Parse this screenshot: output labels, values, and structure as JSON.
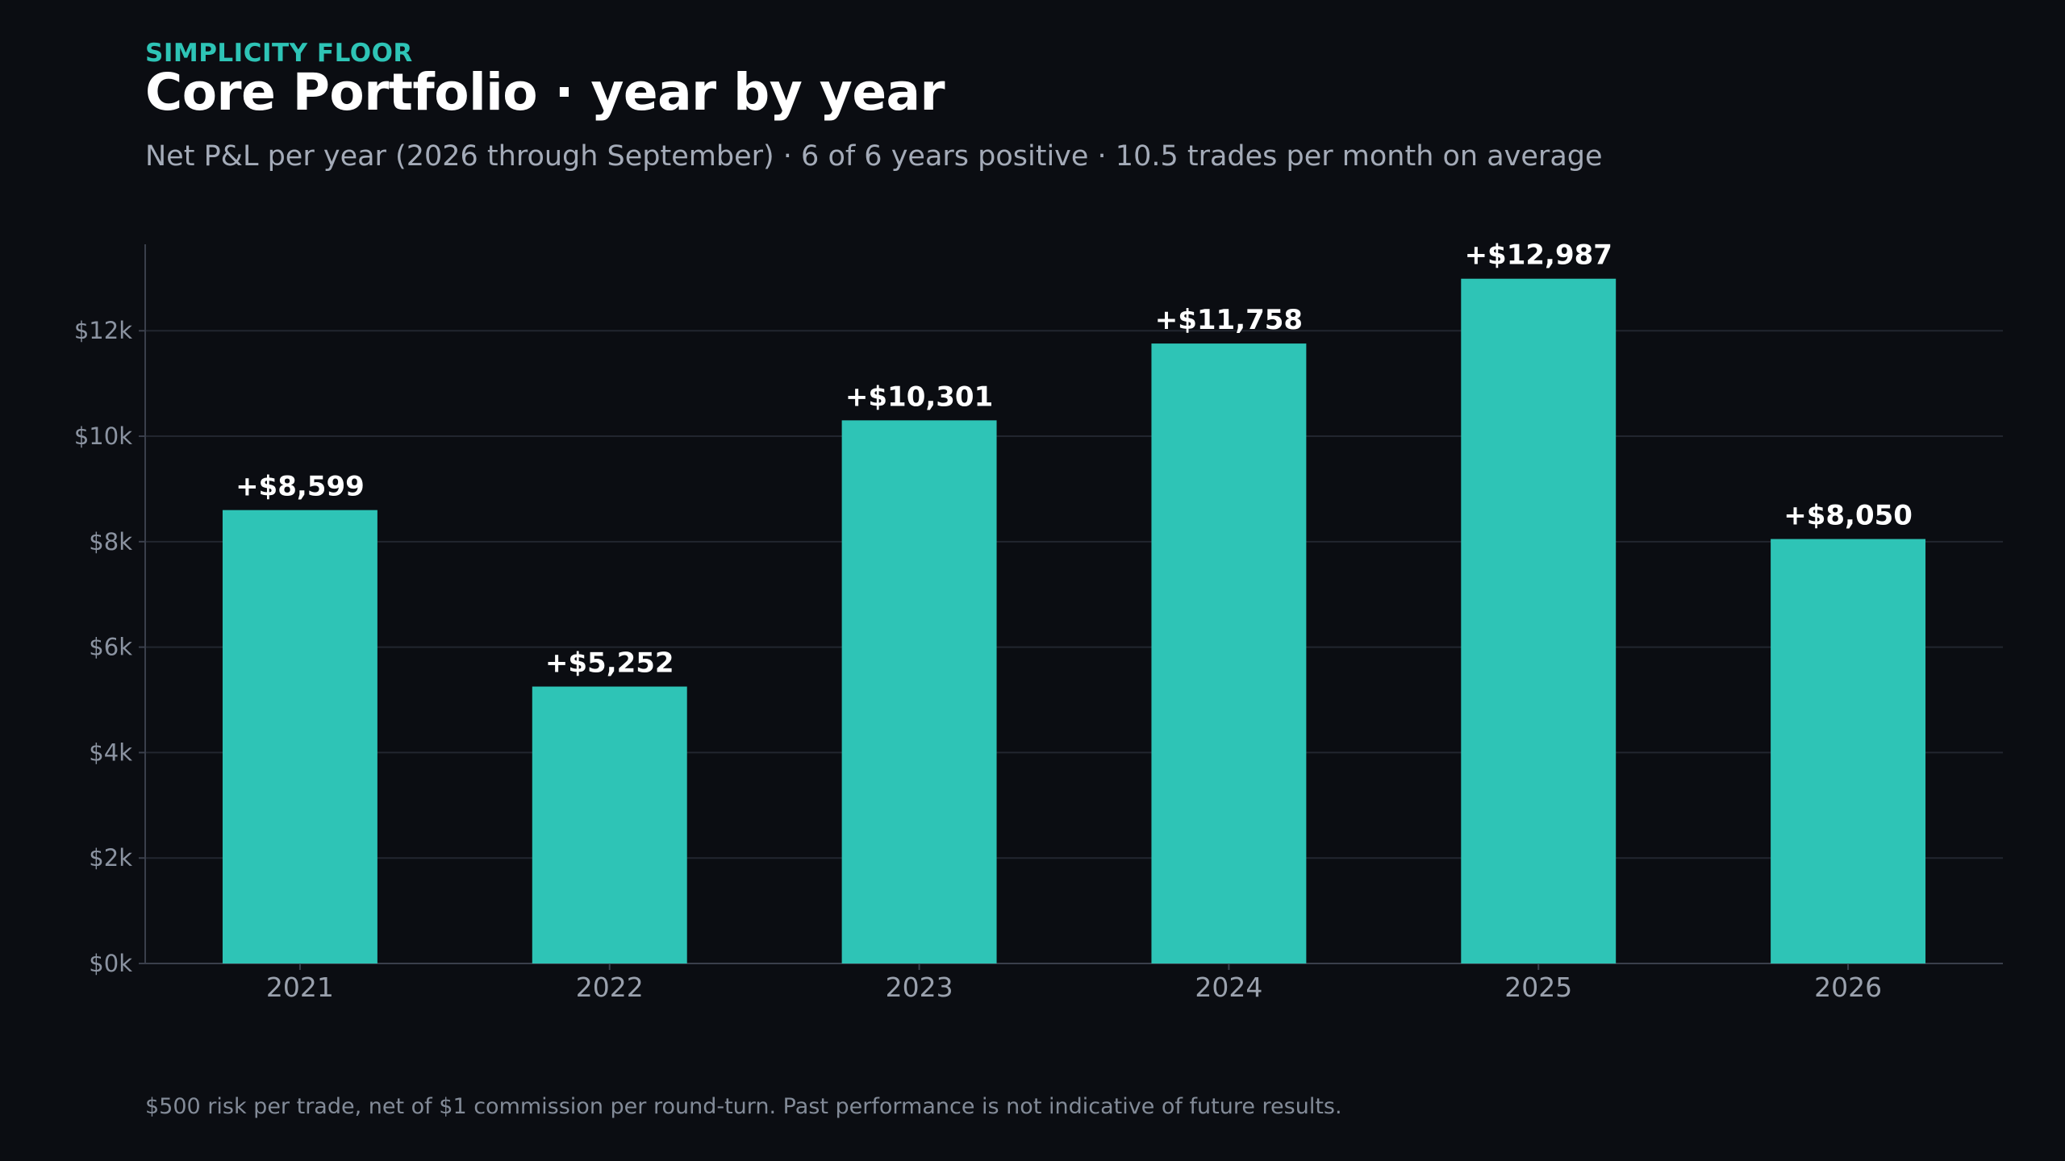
{
  "header": {
    "brand": "SIMPLICITY FLOOR",
    "title": "Core Portfolio · year by year",
    "subtitle": "Net P&L per year (2026 through September) · 6 of 6 years positive · 10.5 trades per month on average"
  },
  "footnote": "$500 risk per trade, net of $1 commission per round-turn. Past performance is not indicative of future results.",
  "colors": {
    "background": "#0b0d12",
    "bar": "#2ec4b6",
    "brand": "#2ec4b6",
    "grid": "#22262f",
    "axis": "#3a3f4b"
  },
  "chart_data": {
    "type": "bar",
    "categories": [
      "2021",
      "2022",
      "2023",
      "2024",
      "2025",
      "2026"
    ],
    "values": [
      8599,
      5252,
      10301,
      11758,
      12987,
      8050
    ],
    "data_labels": [
      "+$8,599",
      "+$5,252",
      "+$10,301",
      "+$11,758",
      "+$12,987",
      "+$8,050"
    ],
    "yticks": [
      0,
      2000,
      4000,
      6000,
      8000,
      10000,
      12000
    ],
    "ytick_labels": [
      "$0k",
      "$2k",
      "$4k",
      "$6k",
      "$8k",
      "$10k",
      "$12k"
    ],
    "ylim": [
      0,
      13640
    ],
    "grid": true
  }
}
